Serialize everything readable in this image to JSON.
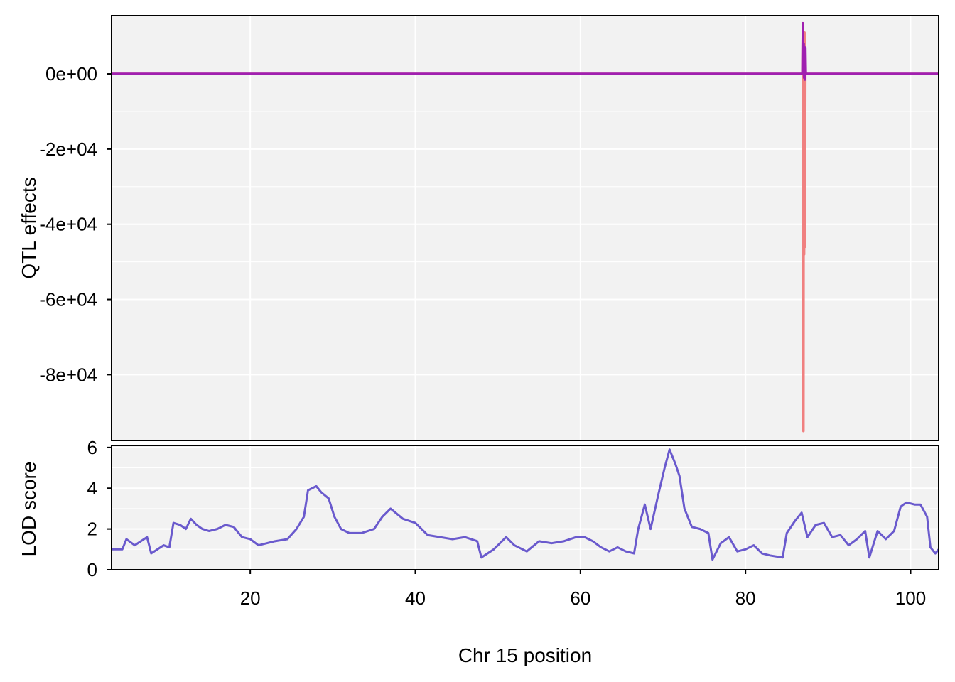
{
  "chart_data": [
    {
      "type": "line",
      "panel": "top",
      "ylabel": "QTL effects",
      "xlim": [
        3.2,
        103.4
      ],
      "ylim": [
        -97500,
        15500
      ],
      "y_ticks": [
        0,
        -20000,
        -40000,
        -60000,
        -80000
      ],
      "y_tick_labels": [
        "0e+00",
        "-2e+04",
        "-4e+04",
        "-6e+04",
        "-8e+04"
      ],
      "grid": true,
      "legend": "none",
      "series": [
        {
          "color": "#f08080",
          "points": [
            [
              3.2,
              0
            ],
            [
              86.9,
              0
            ],
            [
              86.95,
              13000
            ],
            [
              87.0,
              9000
            ],
            [
              87.02,
              -95000
            ],
            [
              87.05,
              5000
            ],
            [
              87.1,
              -48000
            ],
            [
              87.15,
              11000
            ],
            [
              87.2,
              -46000
            ],
            [
              87.25,
              2000
            ],
            [
              87.3,
              0
            ],
            [
              103.4,
              0
            ]
          ]
        },
        {
          "color": "#a020b0",
          "points": [
            [
              3.2,
              0
            ],
            [
              86.9,
              0
            ],
            [
              86.95,
              13500
            ],
            [
              87.0,
              4000
            ],
            [
              87.05,
              8000
            ],
            [
              87.1,
              -1000
            ],
            [
              87.15,
              6000
            ],
            [
              87.2,
              -1500
            ],
            [
              87.25,
              7000
            ],
            [
              87.3,
              0
            ],
            [
              103.4,
              0
            ]
          ]
        }
      ]
    },
    {
      "type": "line",
      "panel": "bottom",
      "ylabel": "LOD score",
      "xlabel": "Chr 15 position",
      "xlim": [
        3.2,
        103.4
      ],
      "ylim": [
        0,
        6.1
      ],
      "x_ticks": [
        20,
        40,
        60,
        80,
        100
      ],
      "y_ticks": [
        0,
        2,
        4,
        6
      ],
      "grid": true,
      "legend": "none",
      "series": [
        {
          "color": "#6a5acd",
          "points": [
            [
              3.2,
              1.0
            ],
            [
              4.5,
              1.0
            ],
            [
              5.0,
              1.5
            ],
            [
              6.0,
              1.2
            ],
            [
              7.5,
              1.6
            ],
            [
              8.0,
              0.8
            ],
            [
              9.5,
              1.2
            ],
            [
              10.2,
              1.1
            ],
            [
              10.7,
              2.3
            ],
            [
              11.5,
              2.2
            ],
            [
              12.2,
              2.0
            ],
            [
              12.8,
              2.5
            ],
            [
              13.5,
              2.2
            ],
            [
              14.2,
              2.0
            ],
            [
              15.0,
              1.9
            ],
            [
              16.0,
              2.0
            ],
            [
              17.0,
              2.2
            ],
            [
              18.0,
              2.1
            ],
            [
              19.0,
              1.6
            ],
            [
              20.0,
              1.5
            ],
            [
              21.0,
              1.2
            ],
            [
              22.0,
              1.3
            ],
            [
              23.0,
              1.4
            ],
            [
              24.5,
              1.5
            ],
            [
              25.6,
              2.0
            ],
            [
              26.5,
              2.6
            ],
            [
              27.0,
              3.9
            ],
            [
              28.0,
              4.1
            ],
            [
              28.6,
              3.8
            ],
            [
              29.5,
              3.5
            ],
            [
              30.2,
              2.6
            ],
            [
              31.0,
              2.0
            ],
            [
              32.0,
              1.8
            ],
            [
              33.5,
              1.8
            ],
            [
              35.0,
              2.0
            ],
            [
              36.0,
              2.6
            ],
            [
              37.0,
              3.0
            ],
            [
              38.5,
              2.5
            ],
            [
              40.0,
              2.3
            ],
            [
              41.5,
              1.7
            ],
            [
              43.0,
              1.6
            ],
            [
              44.5,
              1.5
            ],
            [
              46.0,
              1.6
            ],
            [
              47.5,
              1.4
            ],
            [
              48.0,
              0.6
            ],
            [
              49.5,
              1.0
            ],
            [
              51.0,
              1.6
            ],
            [
              52.0,
              1.2
            ],
            [
              53.5,
              0.9
            ],
            [
              55.0,
              1.4
            ],
            [
              56.5,
              1.3
            ],
            [
              58.0,
              1.4
            ],
            [
              59.5,
              1.6
            ],
            [
              60.5,
              1.6
            ],
            [
              61.5,
              1.4
            ],
            [
              62.5,
              1.1
            ],
            [
              63.5,
              0.9
            ],
            [
              64.5,
              1.1
            ],
            [
              65.5,
              0.9
            ],
            [
              66.5,
              0.8
            ],
            [
              67.0,
              2.0
            ],
            [
              67.8,
              3.2
            ],
            [
              68.5,
              2.0
            ],
            [
              69.5,
              3.8
            ],
            [
              70.2,
              5.0
            ],
            [
              70.8,
              5.9
            ],
            [
              71.5,
              5.2
            ],
            [
              72.0,
              4.6
            ],
            [
              72.6,
              3.0
            ],
            [
              73.5,
              2.1
            ],
            [
              74.5,
              2.0
            ],
            [
              75.5,
              1.8
            ],
            [
              76.0,
              0.5
            ],
            [
              77.0,
              1.3
            ],
            [
              78.0,
              1.6
            ],
            [
              79.0,
              0.9
            ],
            [
              80.0,
              1.0
            ],
            [
              81.0,
              1.2
            ],
            [
              82.0,
              0.8
            ],
            [
              83.0,
              0.7
            ],
            [
              84.5,
              0.6
            ],
            [
              85.0,
              1.8
            ],
            [
              86.0,
              2.4
            ],
            [
              86.8,
              2.8
            ],
            [
              87.5,
              1.6
            ],
            [
              88.5,
              2.2
            ],
            [
              89.5,
              2.3
            ],
            [
              90.5,
              1.6
            ],
            [
              91.5,
              1.7
            ],
            [
              92.5,
              1.2
            ],
            [
              93.5,
              1.5
            ],
            [
              94.5,
              1.9
            ],
            [
              95.0,
              0.6
            ],
            [
              96.0,
              1.9
            ],
            [
              97.0,
              1.5
            ],
            [
              98.0,
              1.9
            ],
            [
              98.8,
              3.1
            ],
            [
              99.5,
              3.3
            ],
            [
              100.5,
              3.2
            ],
            [
              101.2,
              3.2
            ],
            [
              102.0,
              2.6
            ],
            [
              102.4,
              1.1
            ],
            [
              103.0,
              0.8
            ],
            [
              103.4,
              1.0
            ]
          ]
        }
      ]
    }
  ]
}
